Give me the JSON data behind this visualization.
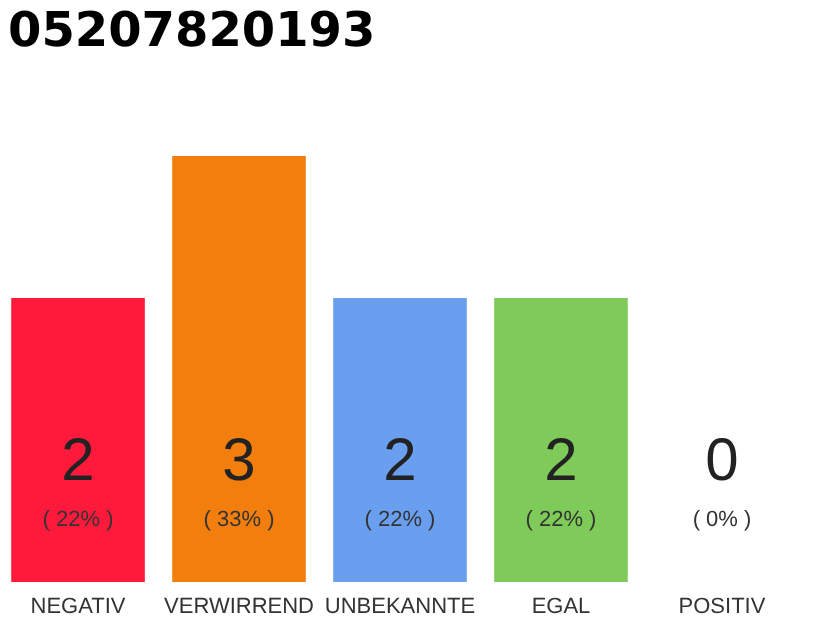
{
  "chart_data": {
    "type": "bar",
    "title": "05207820193",
    "categories": [
      "NEGATIV",
      "VERWIRREND",
      "UNBEKANNTE",
      "EGAL",
      "POSITIV"
    ],
    "values": [
      2,
      3,
      2,
      2,
      0
    ],
    "colors": [
      "#ff1a3c",
      "#f27e0e",
      "#6a9ff0",
      "#7ecb5a",
      "#cccccc"
    ],
    "data_labels": true,
    "annotations": [
      "( 22% )",
      "( 33% )",
      "( 22% )",
      "( 22% )",
      "( 0% )"
    ]
  }
}
